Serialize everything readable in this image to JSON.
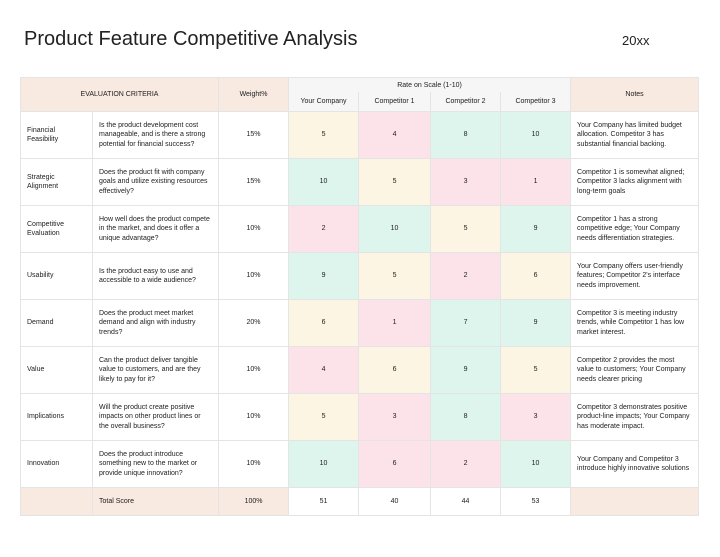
{
  "header": {
    "title": "Product Feature Competitive Analysis",
    "year": "20xx"
  },
  "table": {
    "columns": {
      "criteria": "EVALUATION CRITERIA",
      "weight": "Weight%",
      "rate": "Rate on Scale (1-10)",
      "companies": [
        "Your Company",
        "Competitor 1",
        "Competitor 2",
        "Competitor 3"
      ],
      "notes": "Notes"
    },
    "palette": {
      "yellow": "#fdf5e3",
      "pink": "#fce3ea",
      "green": "#def5ee"
    },
    "rows": [
      {
        "criterion": "Financial Feasibility",
        "question": "Is the product development cost manageable, and is there a strong potential for financial success?",
        "weight": "15%",
        "scores": [
          5,
          4,
          8,
          10
        ],
        "colors": [
          "yellow",
          "pink",
          "green",
          "green"
        ],
        "note": "Your Company has limited budget allocation. Competitor 3 has substantial financial backing."
      },
      {
        "criterion": "Strategic Alignment",
        "question": "Does the product fit with company goals and utilize existing resources effectively?",
        "weight": "15%",
        "scores": [
          10,
          5,
          3,
          1
        ],
        "colors": [
          "green",
          "yellow",
          "pink",
          "pink"
        ],
        "note": "Competitor 1 is somewhat aligned; Competitor 3 lacks alignment with long-term goals"
      },
      {
        "criterion": "Competitive Evaluation",
        "question": "How well does the product compete in the market, and does it offer a unique advantage?",
        "weight": "10%",
        "scores": [
          2,
          10,
          5,
          9
        ],
        "colors": [
          "pink",
          "green",
          "yellow",
          "green"
        ],
        "note": "Competitor 1 has a strong competitive edge; Your Company needs differentiation strategies."
      },
      {
        "criterion": "Usability",
        "question": "Is the product easy to use and accessible to a wide audience?",
        "weight": "10%",
        "scores": [
          9,
          5,
          2,
          6
        ],
        "colors": [
          "green",
          "yellow",
          "pink",
          "yellow"
        ],
        "note": "Your Company offers user-friendly features; Competitor 2's interface needs improvement."
      },
      {
        "criterion": "Demand",
        "question": "Does the product meet market demand and align with industry trends?",
        "weight": "20%",
        "scores": [
          6,
          1,
          7,
          9
        ],
        "colors": [
          "yellow",
          "pink",
          "green",
          "green"
        ],
        "note": "Competitor 3 is meeting industry trends, while Competitor 1 has low market interest."
      },
      {
        "criterion": "Value",
        "question": "Can the product deliver tangible value to customers, and are they likely to pay for it?",
        "weight": "10%",
        "scores": [
          4,
          6,
          9,
          5
        ],
        "colors": [
          "pink",
          "yellow",
          "green",
          "yellow"
        ],
        "note": "Competitor 2 provides the most value to customers; Your Company needs clearer pricing"
      },
      {
        "criterion": "Implications",
        "question": "Will the product create positive impacts on other product lines or the overall business?",
        "weight": "10%",
        "scores": [
          5,
          3,
          8,
          3
        ],
        "colors": [
          "yellow",
          "pink",
          "green",
          "pink"
        ],
        "note": "Competitor 3 demonstrates positive product-line impacts; Your Company has moderate impact."
      },
      {
        "criterion": "Innovation",
        "question": "Does the product introduce something new to the market or provide unique innovation?",
        "weight": "10%",
        "scores": [
          10,
          6,
          2,
          10
        ],
        "colors": [
          "green",
          "pink",
          "pink",
          "green"
        ],
        "note": "Your Company and Competitor 3 introduce highly innovative solutions"
      }
    ],
    "total": {
      "label": "Total Score",
      "weight": "100%",
      "scores": [
        51,
        40,
        44,
        53
      ]
    }
  }
}
